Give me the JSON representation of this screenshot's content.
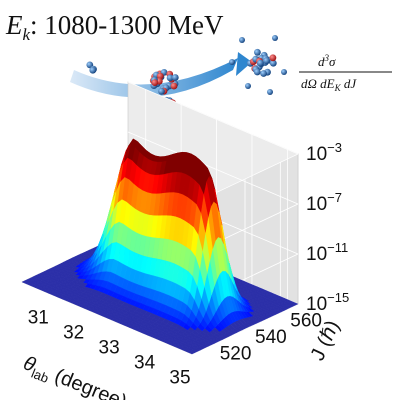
{
  "figure": {
    "title_symbol": "E",
    "title_subscript": "k",
    "title_range": ": 1080-1300 MeV",
    "formula_numerator_base": "d",
    "formula_numerator_sup": "3",
    "formula_numerator_rest": "σ",
    "formula_denominator": "dΩ dE",
    "formula_denominator_sub": "K",
    "formula_denominator_end": " dJ"
  },
  "chart_data": {
    "type": "surface3d",
    "title": "Ek: 1080-1300 MeV",
    "x_axis": {
      "label": "θlab (degree)",
      "ticks": [
        "31",
        "32",
        "33",
        "34",
        "35"
      ],
      "range": [
        30.5,
        35.3
      ]
    },
    "y_axis": {
      "label": "J (ℏ)",
      "ticks": [
        "520",
        "540",
        "560"
      ],
      "range": [
        510,
        570
      ]
    },
    "z_axis": {
      "label": "d3σ/dΩ dEK dJ",
      "scale": "log",
      "ticks": [
        "10-3",
        "10-7",
        "10-11",
        "10-15"
      ],
      "range_exponent": [
        -15,
        -3
      ]
    },
    "colormap": "jet",
    "ridge": {
      "j_center": 540,
      "theta_peak_start": 32.2,
      "theta_peak_end": 34.2,
      "peak_log10": -3.5,
      "floor_log10": -15
    },
    "grid": true
  }
}
